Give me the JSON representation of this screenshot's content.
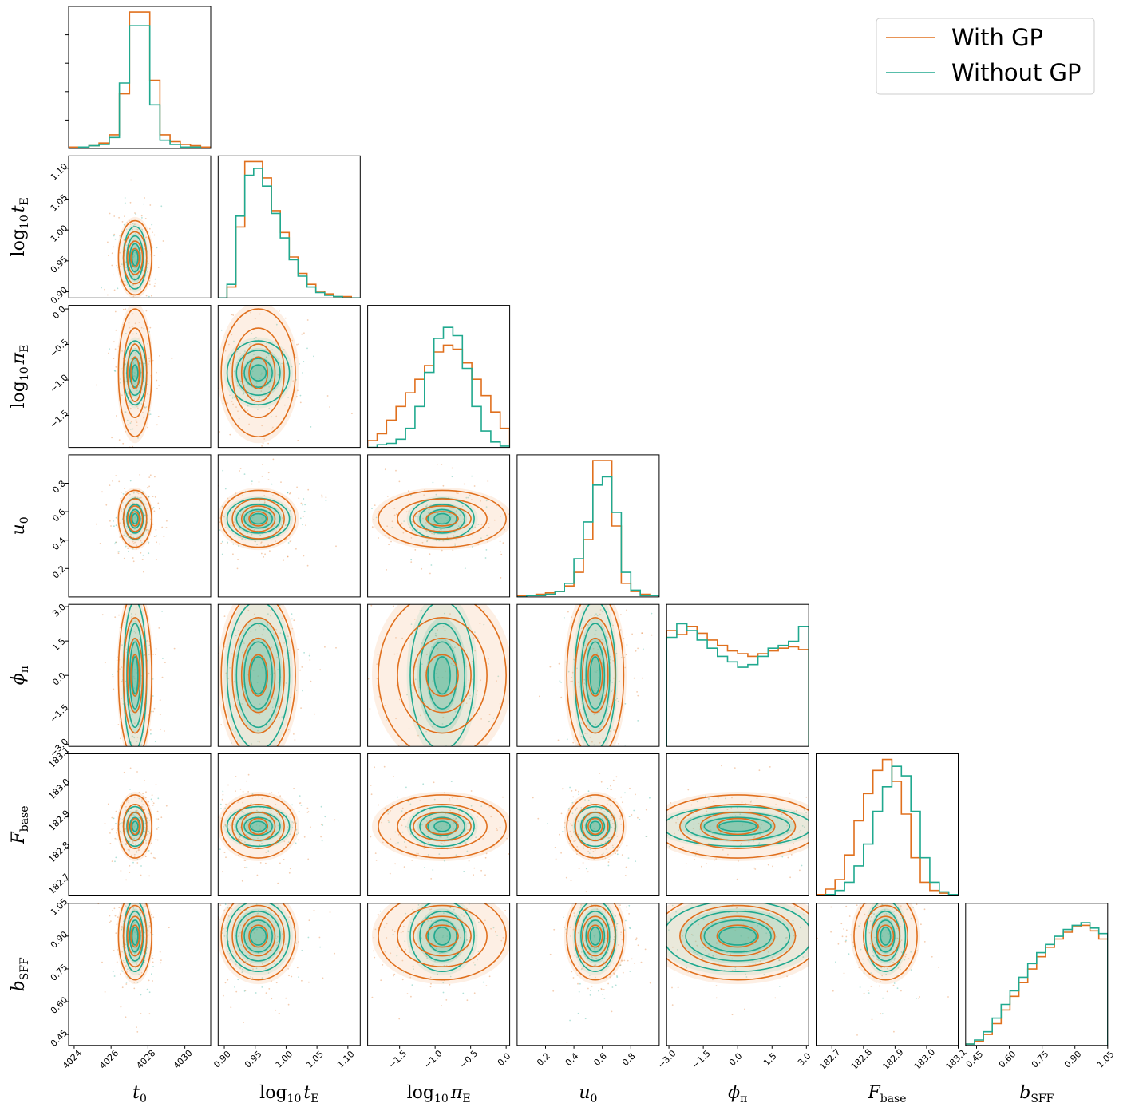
{
  "chart_data": {
    "type": "corner",
    "colors": {
      "with_gp": "#e0701e",
      "without_gp": "#20a98f",
      "with_gp_fill": "#f8c9a6",
      "without_gp_fill": "#1fb59b"
    },
    "legend": {
      "placement": "top-right",
      "entries": [
        "With GP",
        "Without GP"
      ]
    },
    "parameters": [
      {
        "key": "t0",
        "label_main": "t",
        "label_sub": "0",
        "label_prefix": "",
        "range": [
          4023.7,
          4031.4
        ],
        "ticks": [
          4024,
          4026,
          4028,
          4030
        ],
        "tick_labels": [
          "4024",
          "4026",
          "4028",
          "4030"
        ],
        "mean_with": 4027.3,
        "sd_with": 0.45,
        "mean_without": 4027.3,
        "sd_without": 0.35
      },
      {
        "key": "log10_tE",
        "label_main": "t",
        "label_sub": "E",
        "label_prefix": "log10 ",
        "range": [
          0.89,
          1.12
        ],
        "ticks": [
          0.9,
          0.95,
          1.0,
          1.05,
          1.1
        ],
        "tick_labels": [
          "0.90",
          "0.95",
          "1.00",
          "1.05",
          "1.10"
        ],
        "mean_with": 0.955,
        "sd_with": 0.03,
        "mean_without": 0.955,
        "sd_without": 0.028
      },
      {
        "key": "log10_piE",
        "label_main": "π",
        "label_sub": "E",
        "label_prefix": "log10 ",
        "range": [
          -1.95,
          0.05
        ],
        "ticks": [
          -1.5,
          -1.0,
          -0.5,
          0.0
        ],
        "tick_labels": [
          "−1.5",
          "−1.0",
          "−0.5",
          "0.0"
        ],
        "mean_with": -0.9,
        "sd_with": 0.45,
        "mean_without": -0.9,
        "sd_without": 0.25
      },
      {
        "key": "u0",
        "label_main": "u",
        "label_sub": "0",
        "label_prefix": "",
        "range": [
          0.0,
          1.0
        ],
        "ticks": [
          0.2,
          0.4,
          0.6,
          0.8
        ],
        "tick_labels": [
          "0.2",
          "0.4",
          "0.6",
          "0.8"
        ],
        "mean_with": 0.55,
        "sd_with": 0.1,
        "mean_without": 0.55,
        "sd_without": 0.08
      },
      {
        "key": "phi_pi",
        "label_main": "ϕ",
        "label_sub": "π",
        "label_prefix": "",
        "range": [
          -3.1,
          3.1
        ],
        "ticks": [
          -3.0,
          -1.5,
          0.0,
          1.5,
          3.0
        ],
        "tick_labels": [
          "−3.0",
          "−1.5",
          "0.0",
          "1.5",
          "3.0"
        ],
        "mean_with": 0.0,
        "sd_with": 1.8,
        "mean_without": 0.0,
        "sd_without": 1.8
      },
      {
        "key": "F_base",
        "label_main": "F",
        "label_sub": "base",
        "label_prefix": "",
        "range": [
          182.65,
          183.1
        ],
        "ticks": [
          182.7,
          182.8,
          182.9,
          183.0,
          183.1
        ],
        "tick_labels": [
          "182.7",
          "182.8",
          "182.9",
          "183.0",
          "183.1"
        ],
        "mean_with": 182.87,
        "sd_with": 0.05,
        "mean_without": 182.89,
        "sd_without": 0.035
      },
      {
        "key": "b_SFF",
        "label_main": "b",
        "label_sub": "SFF",
        "label_prefix": "",
        "range": [
          0.4,
          1.05
        ],
        "ticks": [
          0.45,
          0.6,
          0.75,
          0.9,
          1.05
        ],
        "tick_labels": [
          "0.45",
          "0.60",
          "0.75",
          "0.90",
          "1.05"
        ],
        "mean_with": 0.9,
        "sd_with": 0.1,
        "mean_without": 0.9,
        "sd_without": 0.09
      }
    ],
    "histograms": [
      {
        "param": "t0",
        "with_gp": [
          1,
          1,
          2,
          4,
          10,
          40,
          100,
          100,
          50,
          10,
          5,
          3,
          2,
          1
        ],
        "without_gp": [
          0,
          1,
          2,
          3,
          8,
          48,
          90,
          90,
          32,
          6,
          3,
          1,
          1,
          0
        ]
      },
      {
        "param": "log10_tE",
        "with_gp": [
          0,
          8,
          52,
          100,
          100,
          88,
          64,
          48,
          30,
          18,
          10,
          5,
          3,
          1,
          1,
          0
        ],
        "without_gp": [
          0,
          10,
          60,
          90,
          95,
          82,
          62,
          44,
          28,
          16,
          8,
          4,
          2,
          1,
          0,
          0
        ]
      },
      {
        "param": "log10_piE",
        "with_gp": [
          5,
          10,
          20,
          30,
          40,
          50,
          60,
          70,
          75,
          72,
          62,
          50,
          38,
          26,
          14
        ],
        "without_gp": [
          0,
          2,
          3,
          6,
          14,
          30,
          55,
          80,
          88,
          82,
          58,
          30,
          12,
          4,
          1
        ]
      },
      {
        "param": "u0",
        "with_gp": [
          1,
          1,
          2,
          3,
          4,
          8,
          18,
          42,
          100,
          100,
          52,
          10,
          4,
          2,
          1
        ],
        "without_gp": [
          0,
          1,
          1,
          2,
          4,
          10,
          28,
          55,
          82,
          88,
          62,
          18,
          5,
          1,
          1
        ]
      },
      {
        "param": "phi_pi",
        "with_gp": [
          85,
          82,
          88,
          83,
          78,
          74,
          70,
          68,
          66,
          68,
          70,
          72,
          73,
          71
        ],
        "without_gp": [
          80,
          90,
          85,
          78,
          72,
          66,
          62,
          58,
          60,
          66,
          72,
          74,
          77,
          88
        ]
      },
      {
        "param": "F_base",
        "with_gp": [
          1,
          5,
          12,
          30,
          55,
          75,
          92,
          100,
          84,
          60,
          28,
          10,
          4,
          2,
          1
        ],
        "without_gp": [
          0,
          1,
          4,
          10,
          22,
          38,
          62,
          80,
          95,
          88,
          62,
          28,
          10,
          3,
          1
        ]
      },
      {
        "param": "b_SFF",
        "with_gp": [
          1,
          3,
          8,
          16,
          26,
          36,
          46,
          56,
          65,
          72,
          78,
          83,
          87,
          88,
          84,
          78
        ],
        "without_gp": [
          1,
          4,
          10,
          20,
          30,
          40,
          50,
          60,
          68,
          74,
          80,
          85,
          88,
          90,
          86,
          82
        ]
      }
    ]
  },
  "legend_labels": {
    "with_gp": "With GP",
    "without_gp": "Without GP"
  },
  "axis_titles": {
    "x": [
      "t0",
      "log10 tE",
      "log10 πE",
      "u0",
      "ϕπ",
      "Fbase",
      "bSFF"
    ],
    "y": [
      "log10 tE",
      "log10 πE",
      "u0",
      "ϕπ",
      "Fbase",
      "bSFF"
    ]
  }
}
